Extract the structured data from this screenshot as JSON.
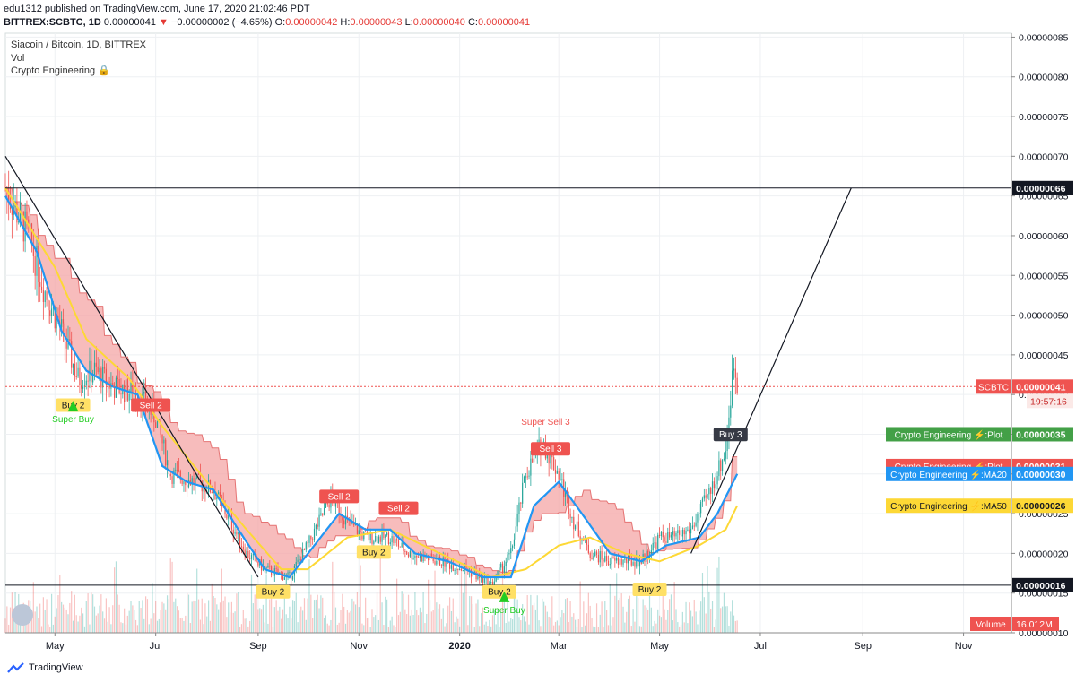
{
  "header": {
    "publisher": "edu1312 published on TradingView.com, June 17, 2020 21:02:46 PDT",
    "ticker": "BITTREX:SCBTC, 1D",
    "close_value": "0.00000041",
    "change_arrow": "▼",
    "change": "−0.00000002 (−4.65%)",
    "o_label": "O:",
    "o_value": "0.00000042",
    "h_label": "H:",
    "h_value": "0.00000043",
    "l_label": "L:",
    "l_value": "0.00000040",
    "c_label": "C:",
    "c_value": "0.00000041"
  },
  "legend": {
    "symbol": "Siacoin / Bitcoin, 1D, BITTREX",
    "volume": "Vol",
    "indicator": "Crypto Engineering",
    "indicator_icon": "lock-icon"
  },
  "footer": {
    "brand": "TradingView",
    "logo_icon": "tradingview-logo-icon"
  },
  "colors": {
    "up": "#26a69a",
    "down": "#ef5350",
    "ma20": "#2196f3",
    "ma50": "#fdd835",
    "cloud": "#f4a6a6",
    "green_cloud": "#9ccc9c",
    "sell": "#ef5350",
    "buy": "#ffe066",
    "super_buy": "#22cc22"
  },
  "chart_data": {
    "type": "candlestick",
    "y_axis": {
      "min": 1e-07,
      "max": 8.55e-07,
      "ticks": [
        "0.00000085",
        "0.00000080",
        "0.00000075",
        "0.00000070",
        "0.00000065",
        "0.00000060",
        "0.00000055",
        "0.00000050",
        "0.00000045",
        "0.00000040",
        "0.00000035",
        "0.00000030",
        "0.00000025",
        "0.00000020",
        "0.00000015",
        "0.00000010"
      ],
      "tick_values": [
        8.5e-07,
        8e-07,
        7.5e-07,
        7e-07,
        6.5e-07,
        6e-07,
        5.5e-07,
        5e-07,
        4.5e-07,
        4e-07,
        3.5e-07,
        3e-07,
        2.5e-07,
        2e-07,
        1.5e-07,
        1e-07
      ]
    },
    "x_axis": {
      "start": "2019-04-01",
      "end": "2020-11-30",
      "ticks": [
        {
          "label": "May",
          "date": "2019-05-01"
        },
        {
          "label": "Jul",
          "date": "2019-07-01"
        },
        {
          "label": "Sep",
          "date": "2019-09-01"
        },
        {
          "label": "Nov",
          "date": "2019-11-01"
        },
        {
          "label": "2020",
          "date": "2020-01-01",
          "bold": true
        },
        {
          "label": "Mar",
          "date": "2020-03-01"
        },
        {
          "label": "May",
          "date": "2020-05-01"
        },
        {
          "label": "Jul",
          "date": "2020-07-01"
        },
        {
          "label": "Sep",
          "date": "2020-09-01"
        },
        {
          "label": "Nov",
          "date": "2020-11-01"
        }
      ]
    },
    "price": [
      [
        "2019-04-01",
        6.6e-07
      ],
      [
        "2019-04-15",
        6e-07
      ],
      [
        "2019-04-25",
        5.3e-07
      ],
      [
        "2019-05-05",
        4.8e-07
      ],
      [
        "2019-05-15",
        4.2e-07
      ],
      [
        "2019-05-25",
        4.3e-07
      ],
      [
        "2019-06-05",
        4.1e-07
      ],
      [
        "2019-06-20",
        4e-07
      ],
      [
        "2019-07-01",
        3.7e-07
      ],
      [
        "2019-07-10",
        3e-07
      ],
      [
        "2019-07-25",
        2.9e-07
      ],
      [
        "2019-08-05",
        2.8e-07
      ],
      [
        "2019-08-15",
        2.4e-07
      ],
      [
        "2019-08-25",
        2e-07
      ],
      [
        "2019-09-05",
        1.8e-07
      ],
      [
        "2019-09-20",
        1.7e-07
      ],
      [
        "2019-10-01",
        2.1e-07
      ],
      [
        "2019-10-15",
        2.7e-07
      ],
      [
        "2019-10-25",
        2.4e-07
      ],
      [
        "2019-11-05",
        2.2e-07
      ],
      [
        "2019-11-20",
        2.2e-07
      ],
      [
        "2019-12-01",
        2e-07
      ],
      [
        "2019-12-20",
        1.9e-07
      ],
      [
        "2020-01-05",
        1.8e-07
      ],
      [
        "2020-01-20",
        1.6e-07
      ],
      [
        "2020-02-01",
        2e-07
      ],
      [
        "2020-02-10",
        3e-07
      ],
      [
        "2020-02-20",
        3.4e-07
      ],
      [
        "2020-03-01",
        3e-07
      ],
      [
        "2020-03-10",
        2.4e-07
      ],
      [
        "2020-03-20",
        2e-07
      ],
      [
        "2020-04-01",
        1.9e-07
      ],
      [
        "2020-04-20",
        1.9e-07
      ],
      [
        "2020-05-01",
        2.2e-07
      ],
      [
        "2020-05-10",
        2.2e-07
      ],
      [
        "2020-05-20",
        2.3e-07
      ],
      [
        "2020-06-01",
        2.8e-07
      ],
      [
        "2020-06-10",
        3.3e-07
      ],
      [
        "2020-06-15",
        4.4e-07
      ],
      [
        "2020-06-17",
        4.1e-07
      ]
    ],
    "ma20": [
      [
        "2019-04-01",
        6.5e-07
      ],
      [
        "2019-04-20",
        5.8e-07
      ],
      [
        "2019-05-05",
        4.8e-07
      ],
      [
        "2019-05-20",
        4.3e-07
      ],
      [
        "2019-06-05",
        4.1e-07
      ],
      [
        "2019-06-20",
        4e-07
      ],
      [
        "2019-07-05",
        3.1e-07
      ],
      [
        "2019-07-20",
        2.9e-07
      ],
      [
        "2019-08-05",
        2.8e-07
      ],
      [
        "2019-08-20",
        2.3e-07
      ],
      [
        "2019-09-05",
        1.8e-07
      ],
      [
        "2019-09-20",
        1.7e-07
      ],
      [
        "2019-10-05",
        2.1e-07
      ],
      [
        "2019-10-20",
        2.5e-07
      ],
      [
        "2019-11-05",
        2.3e-07
      ],
      [
        "2019-11-20",
        2.3e-07
      ],
      [
        "2019-12-05",
        2e-07
      ],
      [
        "2019-12-25",
        1.9e-07
      ],
      [
        "2020-01-15",
        1.7e-07
      ],
      [
        "2020-02-01",
        1.7e-07
      ],
      [
        "2020-02-15",
        2.6e-07
      ],
      [
        "2020-03-01",
        2.9e-07
      ],
      [
        "2020-03-15",
        2.5e-07
      ],
      [
        "2020-04-01",
        2e-07
      ],
      [
        "2020-04-20",
        1.9e-07
      ],
      [
        "2020-05-05",
        2.1e-07
      ],
      [
        "2020-05-25",
        2.2e-07
      ],
      [
        "2020-06-05",
        2.5e-07
      ],
      [
        "2020-06-17",
        3e-07
      ]
    ],
    "ma50": [
      [
        "2019-04-01",
        6.6e-07
      ],
      [
        "2019-05-01",
        5.6e-07
      ],
      [
        "2019-05-20",
        4.7e-07
      ],
      [
        "2019-06-15",
        4.2e-07
      ],
      [
        "2019-07-05",
        3.6e-07
      ],
      [
        "2019-08-01",
        2.9e-07
      ],
      [
        "2019-08-25",
        2.3e-07
      ],
      [
        "2019-09-15",
        1.8e-07
      ],
      [
        "2019-10-01",
        1.8e-07
      ],
      [
        "2019-10-25",
        2.2e-07
      ],
      [
        "2019-11-20",
        2.3e-07
      ],
      [
        "2019-12-20",
        2e-07
      ],
      [
        "2020-01-20",
        1.7e-07
      ],
      [
        "2020-02-10",
        1.8e-07
      ],
      [
        "2020-03-01",
        2.1e-07
      ],
      [
        "2020-03-20",
        2.2e-07
      ],
      [
        "2020-04-10",
        2e-07
      ],
      [
        "2020-05-01",
        1.9e-07
      ],
      [
        "2020-05-25",
        2.1e-07
      ],
      [
        "2020-06-10",
        2.3e-07
      ],
      [
        "2020-06-17",
        2.6e-07
      ]
    ],
    "horizontal_lines": [
      {
        "value": 6.6e-07,
        "label": "0.00000066"
      },
      {
        "value": 1.6e-07,
        "label": "0.00000016"
      }
    ],
    "trend_lines": [
      {
        "from": [
          "2019-04-01",
          7e-07
        ],
        "to": [
          "2019-09-01",
          1.7e-07
        ]
      },
      {
        "from": [
          "2020-05-20",
          2e-07
        ],
        "to": [
          "2020-08-25",
          6.6e-07
        ]
      }
    ],
    "last_price": {
      "value": 4.1e-07,
      "symbol": "SCBTC",
      "price_label": "0.00000041",
      "countdown": "19:57:16"
    },
    "axis_badges": [
      {
        "text": "Crypto Engineering ⚡:Plot",
        "value_label": "0.00000035",
        "value": 3.5e-07,
        "color": "#43a047"
      },
      {
        "text": "Crypto Engineering ⚡:Plot",
        "value_label": "0.00000031",
        "value": 3.1e-07,
        "color": "#ef5350"
      },
      {
        "text": "Crypto Engineering ⚡:MA20",
        "value_label": "0.00000030",
        "value": 3e-07,
        "color": "#2196f3"
      },
      {
        "text": "Crypto Engineering ⚡:MA50",
        "value_label": "0.00000026",
        "value": 2.6e-07,
        "color": "#fdd835"
      }
    ],
    "volume_badge": {
      "label": "Volume",
      "value": "16.012M"
    },
    "signals": [
      {
        "text": "Buy 2",
        "date": "2019-05-12",
        "value": 3.85e-07,
        "kind": "buy"
      },
      {
        "text": "Super Buy",
        "date": "2019-05-12",
        "value": 3.65e-07,
        "kind": "super"
      },
      {
        "text": "Sell 2",
        "date": "2019-06-28",
        "value": 3.85e-07,
        "kind": "sell"
      },
      {
        "text": "Buy 2",
        "date": "2019-09-10",
        "value": 1.5e-07,
        "kind": "buy"
      },
      {
        "text": "Sell 2",
        "date": "2019-10-20",
        "value": 2.7e-07,
        "kind": "sell"
      },
      {
        "text": "Buy 2",
        "date": "2019-11-10",
        "value": 2e-07,
        "kind": "buy"
      },
      {
        "text": "Sell 2",
        "date": "2019-11-25",
        "value": 2.55e-07,
        "kind": "sell"
      },
      {
        "text": "Buy 2",
        "date": "2020-01-25",
        "value": 1.5e-07,
        "kind": "buy"
      },
      {
        "text": "Super Buy",
        "date": "2020-01-28",
        "value": 1.25e-07,
        "kind": "super"
      },
      {
        "text": "Super Sell 3",
        "date": "2020-02-22",
        "value": 3.62e-07,
        "kind": "supersell"
      },
      {
        "text": "Sell 3",
        "date": "2020-02-25",
        "value": 3.3e-07,
        "kind": "sell"
      },
      {
        "text": "Buy 2",
        "date": "2020-04-25",
        "value": 1.53e-07,
        "kind": "buy"
      },
      {
        "text": "Buy 3",
        "date": "2020-06-13",
        "value": 3.48e-07,
        "kind": "dark"
      }
    ]
  }
}
